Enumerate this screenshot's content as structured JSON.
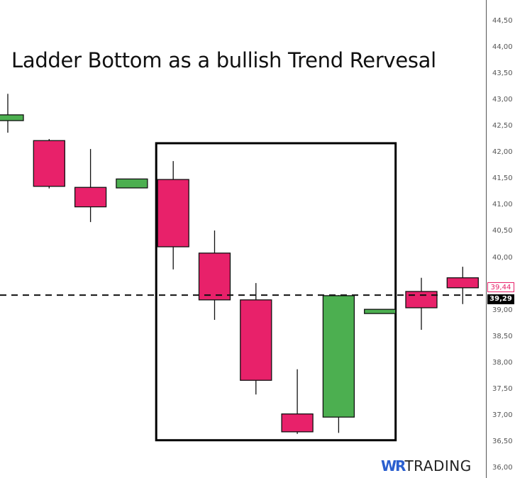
{
  "chart_data": {
    "type": "candlestick",
    "title": "Ladder Bottom as a bullish Trend Rervesal",
    "xlabel": "",
    "ylabel": "",
    "ylim": [
      36.0,
      44.5
    ],
    "y_ticks": [
      "44,50",
      "44,00",
      "43,50",
      "43,00",
      "42,50",
      "42,00",
      "41,50",
      "41,00",
      "40,50",
      "40,00",
      "39,50",
      "39,00",
      "38,50",
      "38,00",
      "37,50",
      "37,00",
      "36,50",
      "36,00"
    ],
    "grid": false,
    "colors": {
      "bullish": "#4caf50",
      "bearish": "#e8216a",
      "outline": "#111111"
    },
    "candles": [
      {
        "open": 42.61,
        "high": 43.12,
        "low": 42.38,
        "close": 42.72
      },
      {
        "open": 42.23,
        "high": 42.26,
        "low": 41.32,
        "close": 41.36
      },
      {
        "open": 41.34,
        "high": 42.07,
        "low": 40.68,
        "close": 40.97
      },
      {
        "open": 41.33,
        "high": 41.5,
        "low": 41.33,
        "close": 41.5
      },
      {
        "open": 41.49,
        "high": 41.84,
        "low": 39.78,
        "close": 40.21
      },
      {
        "open": 40.09,
        "high": 40.52,
        "low": 38.82,
        "close": 39.2
      },
      {
        "open": 39.2,
        "high": 39.52,
        "low": 37.4,
        "close": 37.67
      },
      {
        "open": 37.03,
        "high": 37.88,
        "low": 36.65,
        "close": 36.69
      },
      {
        "open": 36.97,
        "high": 39.29,
        "low": 36.67,
        "close": 39.28
      },
      {
        "open": 38.94,
        "high": 39.02,
        "low": 38.94,
        "close": 39.02
      },
      {
        "open": 39.36,
        "high": 39.62,
        "low": 38.63,
        "close": 39.05
      },
      {
        "open": 39.62,
        "high": 39.83,
        "low": 39.12,
        "close": 39.43
      }
    ],
    "annotations": {
      "box": {
        "label": "ladder-bottom-pattern",
        "from_candle": 5,
        "to_candle": 10,
        "top": 42.18,
        "bottom": 36.53
      },
      "horizontal_line": {
        "price": 39.29,
        "style": "dashed"
      },
      "price_tags": [
        {
          "value": "39,44",
          "style": "pink-outline"
        },
        {
          "value": "39,29",
          "style": "black-fill"
        }
      ]
    }
  },
  "branding": {
    "logo_wr": "WR",
    "logo_trading": "TRADING"
  }
}
